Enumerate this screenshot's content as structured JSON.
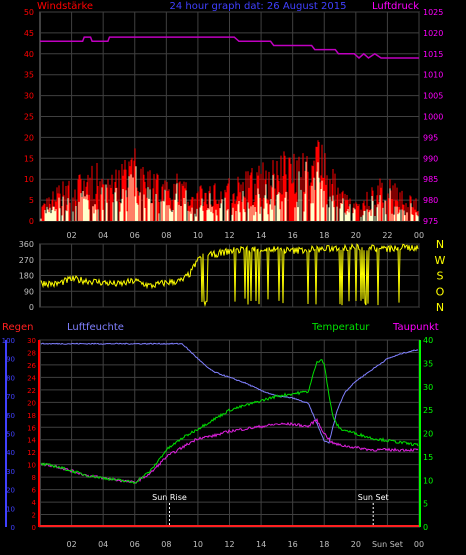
{
  "header": {
    "left": "Windstärke",
    "center": "24 hour graph dat:  26 August 2015",
    "right": "Luftdruck"
  },
  "colors": {
    "wind": "#ff0000",
    "gust": "#ffff00",
    "avgwind": "#ffffcc",
    "pressure": "#c000c0",
    "direction": "#ffff00",
    "rain": "#ff2020",
    "humidity": "#8080ff",
    "temperature": "#00e000",
    "dewpoint": "#e020e0",
    "grid": "#404040",
    "axis_red": "#ff0000",
    "axis_blue": "#4040ff",
    "axis_magenta": "#ff00ff",
    "axis_white": "#c0c0c0",
    "axis_yellow": "#ffff00",
    "axis_green": "#00ff00"
  },
  "chart_data": [
    {
      "type": "line",
      "panel": "wind_pressure",
      "ylabel_left": "Windstärke",
      "ylabel_right": "Luftdruck",
      "y_left": [
        0,
        50
      ],
      "y_left_ticks": [
        "0",
        "5",
        "10",
        "15",
        "20",
        "25",
        "30",
        "35",
        "40",
        "45",
        "50"
      ],
      "y_right": [
        975,
        1025
      ],
      "y_right_ticks": [
        "975",
        "980",
        "985",
        "990",
        "995",
        "1000",
        "1005",
        "1010",
        "1015",
        "1020",
        "1025"
      ],
      "pressure": {
        "x": [
          0,
          2.7,
          2.8,
          3.2,
          3.3,
          4.3,
          4.4,
          5.0,
          10.0,
          12.3,
          12.6,
          14.6,
          14.8,
          17.2,
          17.4,
          18.7,
          18.9,
          19.9,
          20.2,
          20.5,
          20.8,
          21.2,
          21.6,
          22.0,
          24
        ],
        "y": [
          1018,
          1018,
          1019,
          1019,
          1018,
          1018,
          1019,
          1019,
          1019,
          1019,
          1018,
          1018,
          1017,
          1017,
          1016,
          1016,
          1015,
          1015,
          1014,
          1015,
          1014,
          1015,
          1014,
          1014,
          1014
        ]
      },
      "wind_envelope": {
        "x": [
          0,
          1,
          2,
          3,
          4,
          5,
          6,
          7,
          8,
          9,
          10,
          11,
          12,
          13,
          14,
          15,
          16,
          17,
          18,
          19,
          20,
          21,
          22,
          23,
          24
        ],
        "y": [
          3,
          7,
          9,
          11,
          12,
          11,
          15,
          10,
          11,
          9,
          7,
          8,
          9,
          10,
          12,
          13,
          16,
          18,
          15,
          7,
          4,
          7,
          10,
          7,
          4
        ]
      }
    },
    {
      "type": "line",
      "panel": "wind_direction",
      "y_ticks": [
        "0",
        "90",
        "180",
        "270",
        "360"
      ],
      "y_range": [
        0,
        360
      ],
      "compass_labels": [
        "N",
        "W",
        "S",
        "O",
        "N"
      ],
      "direction": {
        "x": [
          0,
          1,
          2,
          3,
          4,
          5,
          6,
          7,
          8,
          9,
          9.6,
          10,
          11,
          12,
          13,
          14,
          15,
          16,
          17,
          18,
          19,
          20,
          21,
          22,
          23,
          24
        ],
        "y": [
          140,
          130,
          160,
          150,
          140,
          130,
          150,
          120,
          140,
          150,
          200,
          280,
          300,
          320,
          330,
          330,
          330,
          320,
          330,
          330,
          340,
          340,
          340,
          330,
          340,
          340
        ]
      }
    },
    {
      "type": "line",
      "panel": "rain_humidity_temperature_dewpoint",
      "labels": [
        "Regen",
        "Luftfeuchte",
        "Temperatur",
        "Taupunkt"
      ],
      "rain_ticks": [
        "0",
        "2",
        "4",
        "6",
        "8",
        "10",
        "12",
        "14",
        "16",
        "18",
        "20",
        "22",
        "24",
        "26",
        "28",
        "30"
      ],
      "humidity_ticks": [
        "0",
        "10",
        "20",
        "30",
        "40",
        "50",
        "60",
        "70",
        "80",
        "90",
        "100"
      ],
      "temp_ticks": [
        "0",
        "5",
        "10",
        "15",
        "20",
        "25",
        "30",
        "35",
        "40"
      ],
      "x_ticks": [
        "02",
        "04",
        "06",
        "08",
        "10",
        "12",
        "14",
        "16",
        "18",
        "20",
        "Sun Set",
        "00"
      ],
      "annotations": [
        {
          "text": "Sun Rise",
          "x": 8.2
        },
        {
          "text": "Sun Set",
          "x": 21.1
        }
      ],
      "rain": {
        "x": [
          0,
          24
        ],
        "y": [
          0,
          0
        ]
      },
      "humidity": {
        "x": [
          0,
          1,
          2,
          4,
          6,
          8,
          9,
          10,
          10.5,
          11,
          12,
          13,
          14,
          15,
          16,
          17,
          17.6,
          18,
          18.3,
          18.8,
          19.3,
          20,
          21,
          22,
          23,
          24
        ],
        "y": [
          98,
          98,
          98,
          98,
          98,
          98,
          98,
          90,
          86,
          83,
          80,
          77,
          73,
          70,
          69,
          66,
          54,
          46,
          45,
          62,
          72,
          78,
          84,
          90,
          93,
          95
        ]
      },
      "temperature": {
        "x": [
          0,
          1,
          2,
          3,
          4,
          5,
          6,
          7,
          8,
          9,
          10,
          11,
          12,
          13,
          14,
          15,
          16,
          17,
          17.5,
          17.8,
          18.0,
          18.3,
          18.6,
          19.0,
          20.0,
          21.0,
          22.0,
          23.0,
          24.0
        ],
        "y": [
          13.5,
          13.0,
          12.0,
          11.0,
          10.5,
          10.0,
          9.5,
          12.0,
          16.5,
          19.0,
          21.0,
          23.0,
          25.0,
          26.0,
          27.0,
          28.0,
          28.5,
          29.0,
          35.0,
          36.0,
          35.0,
          28.0,
          23.0,
          21.0,
          20.0,
          19.0,
          18.5,
          18.0,
          17.5
        ]
      },
      "dewpoint": {
        "x": [
          0,
          1,
          2,
          3,
          4,
          5,
          6,
          7,
          8,
          9,
          10,
          11,
          12,
          13,
          14,
          15,
          16,
          17,
          17.5,
          18,
          18.5,
          19,
          20,
          21,
          22,
          23,
          24
        ],
        "y": [
          13.5,
          13.0,
          12.0,
          11.0,
          10.5,
          10.0,
          9.5,
          11.5,
          15.0,
          17.0,
          19.0,
          19.5,
          20.5,
          21.0,
          21.5,
          22.0,
          22.0,
          21.5,
          23.0,
          20.0,
          18.0,
          17.5,
          17.0,
          16.5,
          16.5,
          16.5,
          16.5
        ]
      }
    }
  ],
  "x_axis_top": [
    "02",
    "04",
    "06",
    "08",
    "10",
    "12",
    "14",
    "16",
    "18",
    "20",
    "22",
    "00"
  ]
}
